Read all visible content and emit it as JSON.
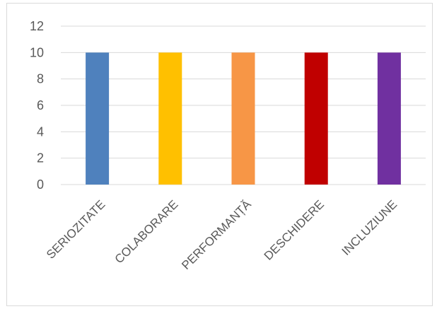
{
  "chart_data": {
    "type": "bar",
    "title": "",
    "xlabel": "",
    "ylabel": "",
    "categories": [
      "SERIOZITATE",
      "COLABORARE",
      "PERFORMANȚĂ",
      "DESCHIDERE",
      "INCLUZIUNE"
    ],
    "values": [
      10,
      10,
      10,
      10,
      10
    ],
    "colors": [
      "#4f81bd",
      "#ffc000",
      "#f79646",
      "#c00000",
      "#7030a0"
    ],
    "ylim": [
      0,
      12
    ],
    "yticks": [
      0,
      2,
      4,
      6,
      8,
      10,
      12
    ],
    "grid": true,
    "legend": "none"
  }
}
